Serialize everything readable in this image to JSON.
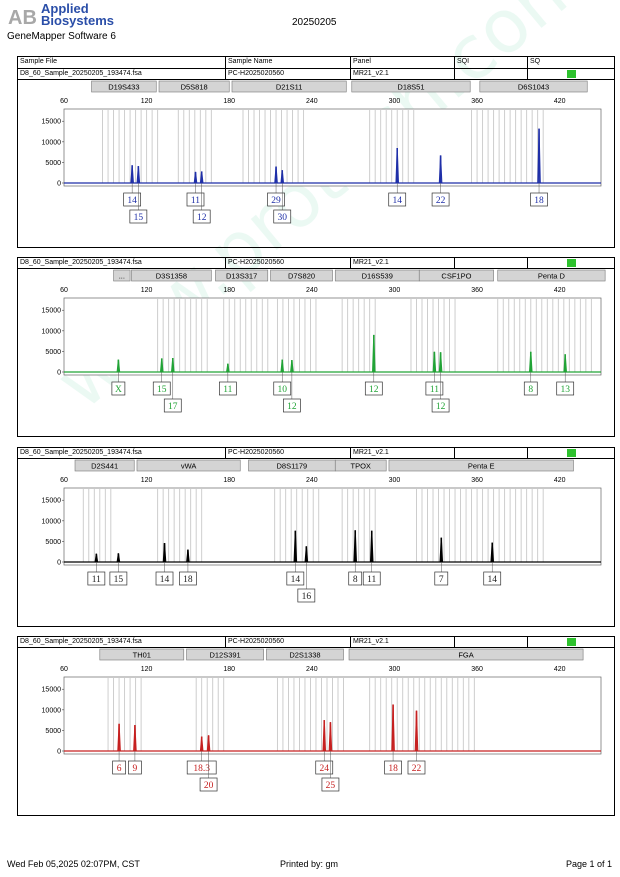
{
  "header": {
    "logo_text": "AB",
    "brand_line1": "Applied",
    "brand_line2": "Biosystems",
    "software": "GeneMapper Software 6",
    "report_date": "20250205",
    "brand_color": "#2a4ea8"
  },
  "columns": {
    "sample_file": "Sample File",
    "sample_name": "Sample Name",
    "panel": "Panel",
    "sqi": "SQI",
    "sq": "SQ"
  },
  "footer": {
    "printed_at": "Wed Feb 05,2025 02:07PM, CST",
    "printed_by": "Printed by: gm",
    "page": "Page 1 of 1"
  },
  "watermark": "www.protech.com.cn",
  "chart_data": [
    {
      "type": "line",
      "sample_file": "D8_60_Sample_20250205_193474.fsa",
      "sample_name": "PC-H2025020560",
      "panel": "MR21_v2.1",
      "color": "#1f2fa8",
      "xlim": [
        60,
        450
      ],
      "ylim": [
        0,
        17000
      ],
      "x_ticks": [
        60,
        120,
        180,
        240,
        300,
        360,
        420
      ],
      "y_ticks": [
        0,
        5000,
        10000,
        15000
      ],
      "loci": [
        {
          "name": "D19S433",
          "start": 80,
          "end": 127
        },
        {
          "name": "D5S818",
          "start": 129,
          "end": 180
        },
        {
          "name": "D21S11",
          "start": 182,
          "end": 265
        },
        {
          "name": "D18S51",
          "start": 269,
          "end": 355
        },
        {
          "name": "D6S1043",
          "start": 362,
          "end": 440
        }
      ],
      "bins": [
        [
          88,
          128
        ],
        [
          143,
          170
        ],
        [
          190,
          236
        ],
        [
          282,
          316
        ],
        [
          356,
          410
        ]
      ],
      "peaks": [
        {
          "x": 109.5,
          "h": 4300
        },
        {
          "x": 114,
          "h": 4100
        },
        {
          "x": 155.5,
          "h": 2700
        },
        {
          "x": 160,
          "h": 2800
        },
        {
          "x": 214,
          "h": 4000
        },
        {
          "x": 218.5,
          "h": 3100
        },
        {
          "x": 302,
          "h": 8500
        },
        {
          "x": 333.5,
          "h": 6700
        },
        {
          "x": 405,
          "h": 13200
        }
      ],
      "labels": [
        {
          "x": 109.5,
          "row": 0,
          "text": "14"
        },
        {
          "x": 114,
          "row": 1,
          "text": "15"
        },
        {
          "x": 155.5,
          "row": 0,
          "text": "11"
        },
        {
          "x": 160,
          "row": 1,
          "text": "12"
        },
        {
          "x": 214,
          "row": 0,
          "text": "29"
        },
        {
          "x": 218.5,
          "row": 1,
          "text": "30"
        },
        {
          "x": 302,
          "row": 0,
          "text": "14"
        },
        {
          "x": 333.5,
          "row": 0,
          "text": "22"
        },
        {
          "x": 405,
          "row": 0,
          "text": "18"
        }
      ]
    },
    {
      "type": "line",
      "sample_file": "D8_60_Sample_20250205_193474.fsa",
      "sample_name": "PC-H2025020560",
      "panel": "MR21_v2.1",
      "color": "#21a336",
      "xlim": [
        60,
        450
      ],
      "ylim": [
        0,
        17000
      ],
      "x_ticks": [
        60,
        120,
        180,
        240,
        300,
        360,
        420
      ],
      "y_ticks": [
        0,
        5000,
        10000,
        15000
      ],
      "loci": [
        {
          "name": "...",
          "start": 96,
          "end": 108
        },
        {
          "name": "D3S1358",
          "start": 109,
          "end": 167
        },
        {
          "name": "D13S317",
          "start": 170,
          "end": 208
        },
        {
          "name": "D7S820",
          "start": 210,
          "end": 255
        },
        {
          "name": "D16S539",
          "start": 257,
          "end": 318
        },
        {
          "name": "CSF1PO",
          "start": 318,
          "end": 372
        },
        {
          "name": "Penta D",
          "start": 375,
          "end": 453
        }
      ],
      "bins": [
        [
          128,
          164
        ],
        [
          176,
          208
        ],
        [
          215,
          246
        ],
        [
          262,
          288
        ],
        [
          312,
          345
        ],
        [
          375,
          444
        ]
      ],
      "peaks": [
        {
          "x": 99.5,
          "h": 3000
        },
        {
          "x": 131,
          "h": 3300
        },
        {
          "x": 139,
          "h": 3400
        },
        {
          "x": 179,
          "h": 2000
        },
        {
          "x": 218.5,
          "h": 3000
        },
        {
          "x": 225.5,
          "h": 2900
        },
        {
          "x": 285,
          "h": 9000
        },
        {
          "x": 329,
          "h": 4900
        },
        {
          "x": 333.5,
          "h": 4800
        },
        {
          "x": 399,
          "h": 4900
        },
        {
          "x": 424,
          "h": 4300
        }
      ],
      "labels": [
        {
          "x": 99.5,
          "row": 0,
          "text": "X"
        },
        {
          "x": 131,
          "row": 0,
          "text": "15"
        },
        {
          "x": 139,
          "row": 1,
          "text": "17"
        },
        {
          "x": 179,
          "row": 0,
          "text": "11"
        },
        {
          "x": 218.5,
          "row": 0,
          "text": "10"
        },
        {
          "x": 225.5,
          "row": 1,
          "text": "12"
        },
        {
          "x": 285,
          "row": 0,
          "text": "12"
        },
        {
          "x": 329,
          "row": 0,
          "text": "11"
        },
        {
          "x": 333.5,
          "row": 1,
          "text": "12"
        },
        {
          "x": 399,
          "row": 0,
          "text": "8"
        },
        {
          "x": 424,
          "row": 0,
          "text": "13"
        }
      ]
    },
    {
      "type": "line",
      "sample_file": "D8_60_Sample_20250205_193474.fsa",
      "sample_name": "PC-H2025020560",
      "panel": "MR21_v2.1",
      "color": "#000000",
      "xlim": [
        60,
        450
      ],
      "ylim": [
        0,
        17000
      ],
      "x_ticks": [
        60,
        120,
        180,
        240,
        300,
        360,
        420
      ],
      "y_ticks": [
        0,
        5000,
        10000,
        15000
      ],
      "loci": [
        {
          "name": "D2S441",
          "start": 68,
          "end": 111
        },
        {
          "name": "vWA",
          "start": 113,
          "end": 188
        },
        {
          "name": "D8S1179",
          "start": 194,
          "end": 257
        },
        {
          "name": "TPOX",
          "start": 257,
          "end": 294
        },
        {
          "name": "Penta E",
          "start": 296,
          "end": 430
        }
      ],
      "bins": [
        [
          74,
          96
        ],
        [
          128,
          160
        ],
        [
          213,
          246
        ],
        [
          262,
          287
        ],
        [
          316,
          410
        ]
      ],
      "peaks": [
        {
          "x": 83.5,
          "h": 2000
        },
        {
          "x": 99.5,
          "h": 2100
        },
        {
          "x": 133,
          "h": 4600
        },
        {
          "x": 150,
          "h": 3000
        },
        {
          "x": 228,
          "h": 7600
        },
        {
          "x": 236,
          "h": 3800
        },
        {
          "x": 271.5,
          "h": 7700
        },
        {
          "x": 283.5,
          "h": 7600
        },
        {
          "x": 334,
          "h": 5900
        },
        {
          "x": 371,
          "h": 4700
        }
      ],
      "labels": [
        {
          "x": 83.5,
          "row": 0,
          "text": "11"
        },
        {
          "x": 99.5,
          "row": 0,
          "text": "15"
        },
        {
          "x": 133,
          "row": 0,
          "text": "14"
        },
        {
          "x": 150,
          "row": 0,
          "text": "18"
        },
        {
          "x": 228,
          "row": 0,
          "text": "14"
        },
        {
          "x": 236,
          "row": 1,
          "text": "16"
        },
        {
          "x": 271.5,
          "row": 0,
          "text": "8"
        },
        {
          "x": 283.5,
          "row": 0,
          "text": "11"
        },
        {
          "x": 334,
          "row": 0,
          "text": "7"
        },
        {
          "x": 371,
          "row": 0,
          "text": "14"
        }
      ]
    },
    {
      "type": "line",
      "sample_file": "D8_60_Sample_20250205_193474.fsa",
      "sample_name": "PC-H2025020560",
      "panel": "MR21_v2.1",
      "color": "#c62020",
      "xlim": [
        60,
        450
      ],
      "ylim": [
        0,
        17000
      ],
      "x_ticks": [
        60,
        120,
        180,
        240,
        300,
        360,
        420
      ],
      "y_ticks": [
        0,
        5000,
        10000,
        15000
      ],
      "loci": [
        {
          "name": "TH01",
          "start": 86,
          "end": 147
        },
        {
          "name": "D12S391",
          "start": 149,
          "end": 205
        },
        {
          "name": "D2S1338",
          "start": 207,
          "end": 263
        },
        {
          "name": "FGA",
          "start": 267,
          "end": 437
        }
      ],
      "bins": [
        [
          92,
          118
        ],
        [
          156,
          178
        ],
        [
          215,
          266
        ],
        [
          282,
          360
        ]
      ],
      "peaks": [
        {
          "x": 100,
          "h": 6600
        },
        {
          "x": 111.5,
          "h": 6300
        },
        {
          "x": 160,
          "h": 3500
        },
        {
          "x": 165,
          "h": 3800
        },
        {
          "x": 249,
          "h": 7500
        },
        {
          "x": 253.5,
          "h": 7000
        },
        {
          "x": 299,
          "h": 11300
        },
        {
          "x": 316,
          "h": 9800
        }
      ],
      "labels": [
        {
          "x": 100,
          "row": 0,
          "text": "6"
        },
        {
          "x": 111.5,
          "row": 0,
          "text": "9"
        },
        {
          "x": 160,
          "row": 0,
          "text": "18.3"
        },
        {
          "x": 165,
          "row": 1,
          "text": "20"
        },
        {
          "x": 249,
          "row": 0,
          "text": "24"
        },
        {
          "x": 253.5,
          "row": 1,
          "text": "25"
        },
        {
          "x": 299,
          "row": 0,
          "text": "18"
        },
        {
          "x": 316,
          "row": 0,
          "text": "22"
        }
      ]
    }
  ]
}
